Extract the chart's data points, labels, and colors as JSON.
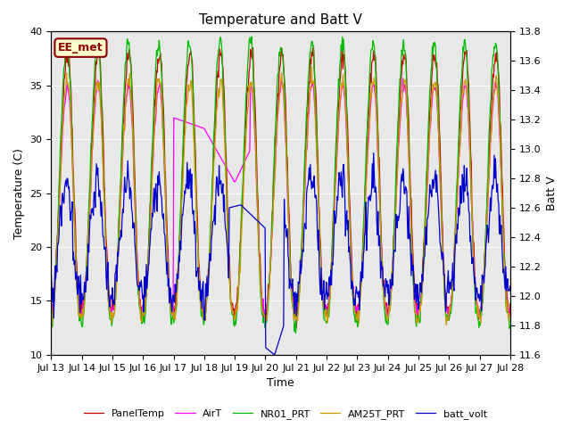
{
  "title": "Temperature and Batt V",
  "xlabel": "Time",
  "ylabel_left": "Temperature (C)",
  "ylabel_right": "Batt V",
  "xlim": [
    0,
    15
  ],
  "ylim_left": [
    10,
    40
  ],
  "ylim_right": [
    11.6,
    13.8
  ],
  "x_tick_labels": [
    "Jul 13",
    "Jul 14",
    "Jul 15",
    "Jul 16",
    "Jul 17",
    "Jul 18",
    "Jul 19",
    "Jul 20",
    "Jul 21",
    "Jul 22",
    "Jul 23",
    "Jul 24",
    "Jul 25",
    "Jul 26",
    "Jul 27",
    "Jul 28"
  ],
  "annotation_text": "EE_met",
  "background_color": "#e8e8e8",
  "legend_entries": [
    "PanelTemp",
    "AirT",
    "NR01_PRT",
    "AM25T_PRT",
    "batt_volt"
  ],
  "legend_colors": [
    "#cc0000",
    "#ff00ff",
    "#00bb00",
    "#cc9900",
    "#0000cc"
  ],
  "panel_color": "#cc0000",
  "air_color": "#ff00ff",
  "nr01_color": "#00bb00",
  "am25_color": "#cc9900",
  "batt_color": "#0000cc",
  "title_fontsize": 11,
  "axis_fontsize": 9,
  "tick_fontsize": 8,
  "annot_facecolor": "#ffffcc",
  "annot_edgecolor": "#8B0000",
  "annot_textcolor": "#8B0000"
}
